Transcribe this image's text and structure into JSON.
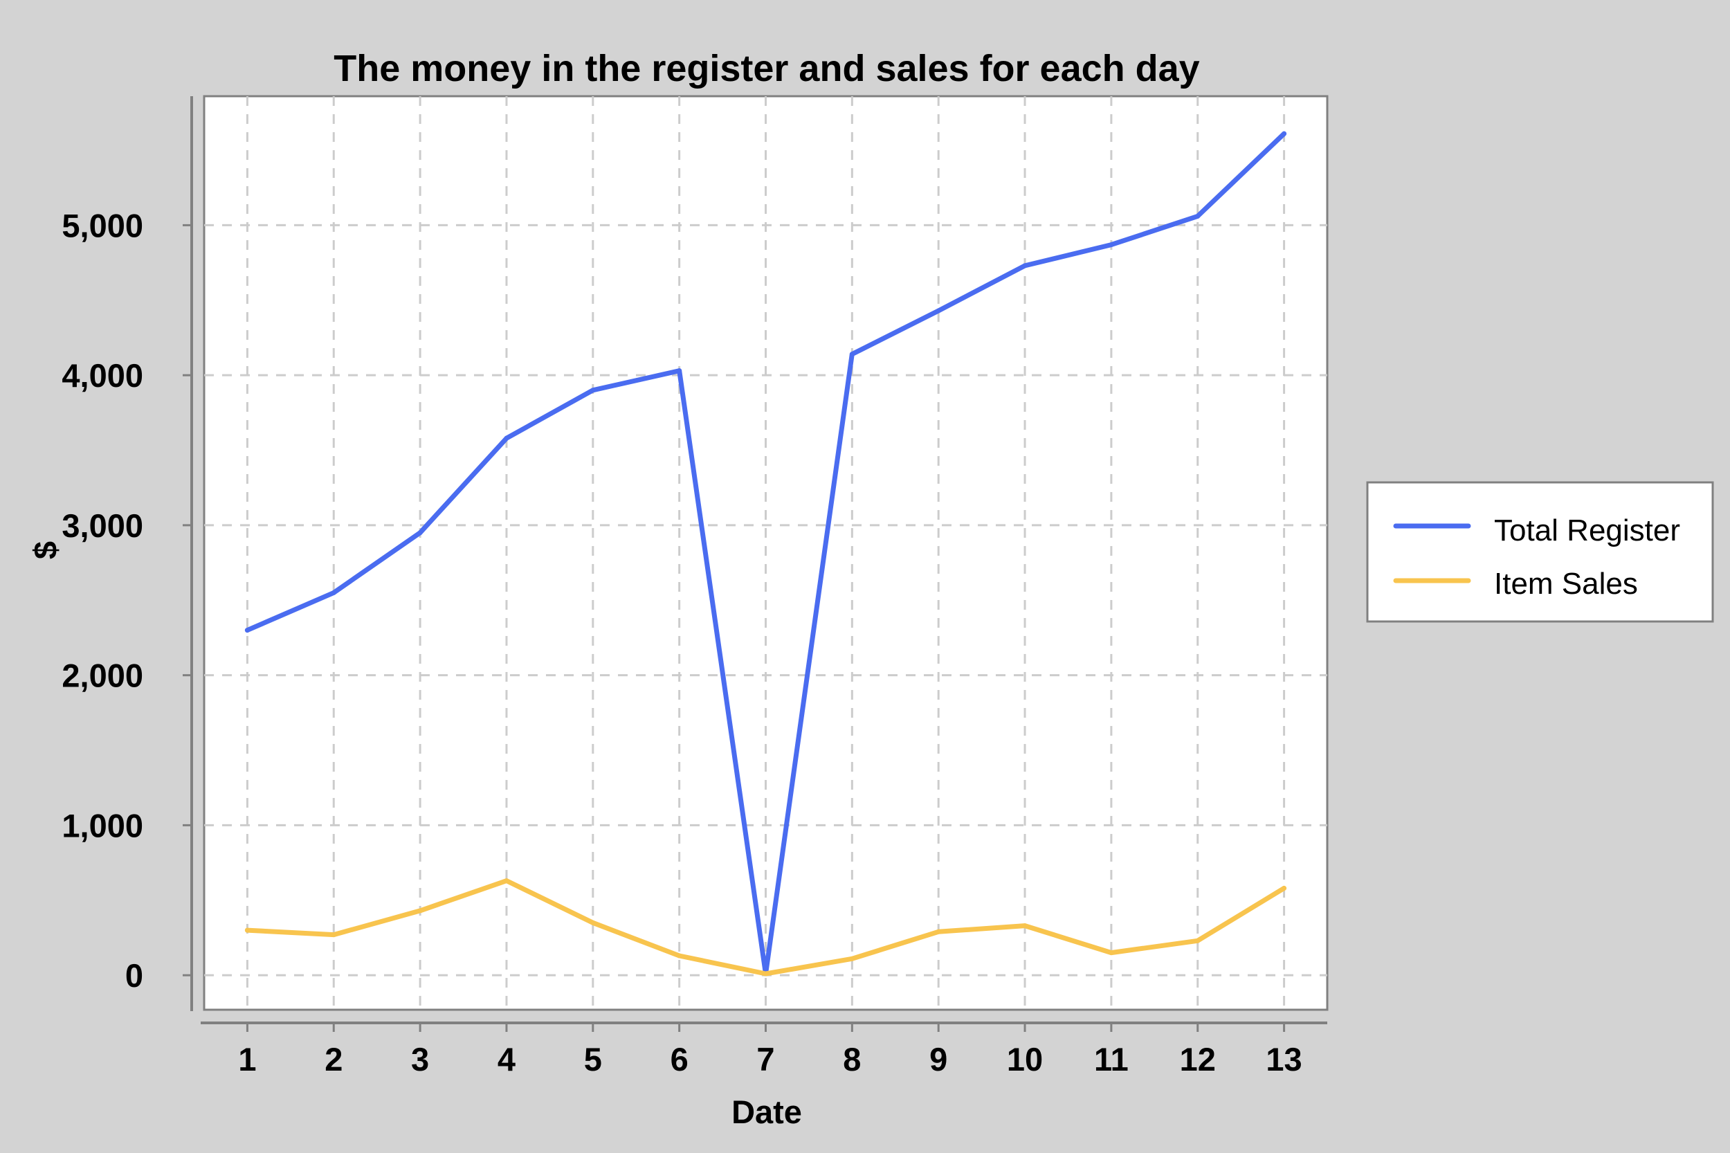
{
  "chart_data": {
    "type": "line",
    "title": "The money in the register and sales for each day",
    "xlabel": "Date",
    "ylabel": "$",
    "x": [
      1,
      2,
      3,
      4,
      5,
      6,
      7,
      8,
      9,
      10,
      11,
      12,
      13
    ],
    "x_tick_labels": [
      "1",
      "2",
      "3",
      "4",
      "5",
      "6",
      "7",
      "8",
      "9",
      "10",
      "11",
      "12",
      "13"
    ],
    "yticks": [
      0,
      1000,
      2000,
      3000,
      4000,
      5000
    ],
    "y_tick_labels": [
      "0",
      "1,000",
      "2,000",
      "3,000",
      "4,000",
      "5,000"
    ],
    "xlim": [
      0.5,
      13.5
    ],
    "ylim": [
      -230,
      5860
    ],
    "grid": true,
    "legend_position": "right",
    "series": [
      {
        "name": "Total Register",
        "color": "#4a6cf0",
        "values": [
          2300,
          2550,
          2950,
          3580,
          3900,
          4030,
          10,
          4140,
          4430,
          4730,
          4870,
          5060,
          5610
        ]
      },
      {
        "name": "Item Sales",
        "color": "#f8c44e",
        "values": [
          300,
          270,
          430,
          630,
          350,
          130,
          10,
          110,
          290,
          330,
          150,
          230,
          580
        ]
      }
    ]
  }
}
